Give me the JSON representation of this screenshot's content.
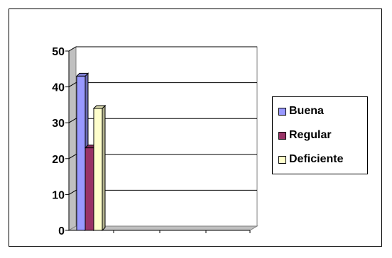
{
  "chart_data": {
    "type": "bar",
    "style": "3d-clustered-column",
    "categories": [
      ""
    ],
    "series": [
      {
        "name": "Buena",
        "values": [
          43
        ],
        "color": "#9999ff"
      },
      {
        "name": "Regular",
        "values": [
          23
        ],
        "color": "#993366"
      },
      {
        "name": "Deficiente",
        "values": [
          34
        ],
        "color": "#ffffcc"
      }
    ],
    "ylim": [
      0,
      50
    ],
    "yticks": [
      "0",
      "10",
      "20",
      "30",
      "40",
      "50"
    ],
    "grid": true,
    "legend": "right"
  }
}
